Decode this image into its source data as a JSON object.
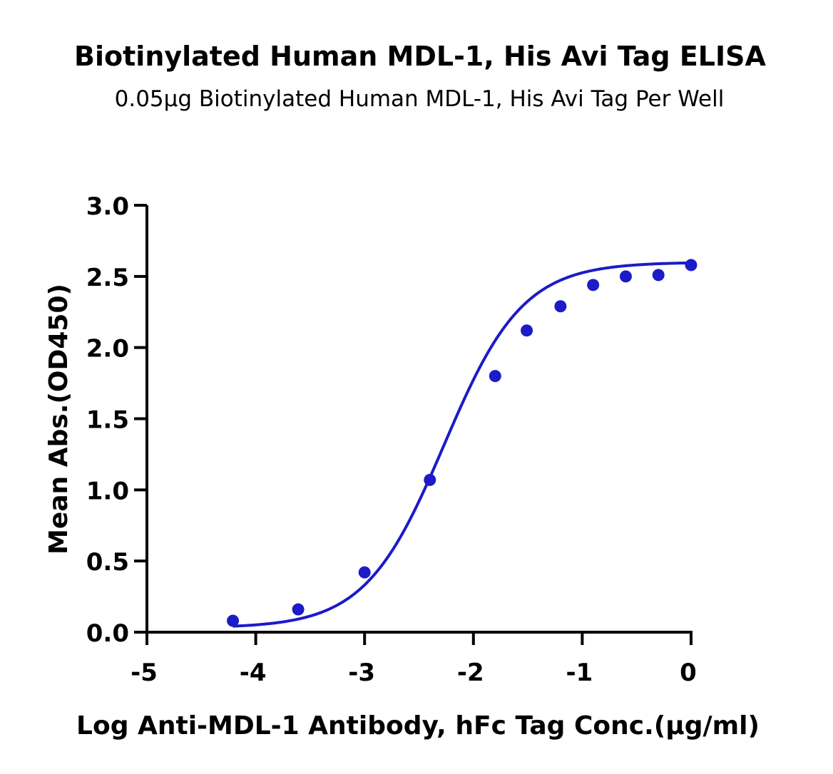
{
  "chart_data": {
    "type": "scatter",
    "title": "Biotinylated Human MDL-1, His Avi Tag ELISA",
    "subtitle": "0.05μg Biotinylated Human MDL-1, His Avi Tag Per Well",
    "xlabel": "Log Anti-MDL-1 Antibody, hFc Tag Conc.(μg/ml)",
    "ylabel": "Mean Abs.(OD450)",
    "xlim": [
      -5,
      0
    ],
    "ylim": [
      0,
      3.0
    ],
    "x_ticks": [
      -5,
      -4,
      -3,
      -2,
      -1,
      0
    ],
    "x_tick_labels": [
      "-5",
      "-4",
      "-3",
      "-2",
      "-1",
      "0"
    ],
    "y_ticks": [
      0,
      0.5,
      1.0,
      1.5,
      2.0,
      2.5,
      3.0
    ],
    "y_tick_labels": [
      "0.0",
      "0.5",
      "1.0",
      "1.5",
      "2.0",
      "2.5",
      "3.0"
    ],
    "grid": false,
    "series": [
      {
        "color": "#1b1bc8",
        "x": [
          -4.21,
          -3.61,
          -3.0,
          -2.4,
          -1.8,
          -1.51,
          -1.2,
          -0.9,
          -0.6,
          -0.3,
          0.0
        ],
        "y": [
          0.08,
          0.16,
          0.42,
          1.07,
          1.8,
          2.12,
          2.29,
          2.44,
          2.5,
          2.51,
          2.58
        ]
      }
    ],
    "fit": {
      "type": "four-parameter-logistic",
      "bottom": 0.03,
      "top": 2.6,
      "logEC50": -2.27,
      "hill": 1.2
    }
  }
}
